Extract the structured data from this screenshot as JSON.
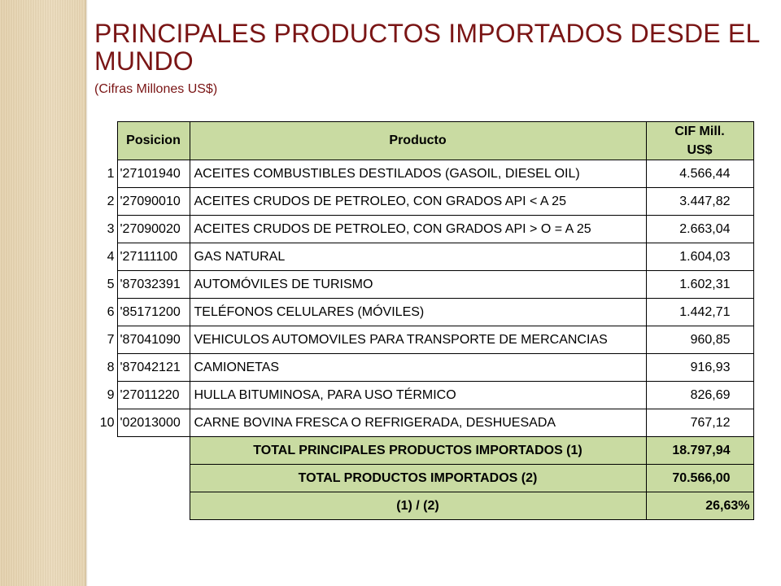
{
  "title": "PRINCIPALES PRODUCTOS IMPORTADOS DESDE EL MUNDO",
  "subtitle": "(Cifras Millones US$)",
  "table": {
    "headers": {
      "posicion": "Posicion",
      "producto": "Producto",
      "cif_line1": "CIF Mill.",
      "cif_line2": "US$"
    },
    "rows": [
      {
        "n": "1",
        "pos": "'27101940",
        "prod": "ACEITES COMBUSTIBLES DESTILADOS (GASOIL, DIESEL OIL)",
        "cif": "4.566,44"
      },
      {
        "n": "2",
        "pos": "'27090010",
        "prod": "ACEITES CRUDOS DE PETROLEO, CON GRADOS API < A 25",
        "cif": "3.447,82"
      },
      {
        "n": "3",
        "pos": "'27090020",
        "prod": "ACEITES CRUDOS DE PETROLEO, CON GRADOS API > O = A 25",
        "cif": "2.663,04"
      },
      {
        "n": "4",
        "pos": "'27111100",
        "prod": "GAS NATURAL",
        "cif": "1.604,03"
      },
      {
        "n": "5",
        "pos": "'87032391",
        "prod": "AUTOMÓVILES DE TURISMO",
        "cif": "1.602,31"
      },
      {
        "n": "6",
        "pos": "'85171200",
        "prod": "TELÉFONOS CELULARES (MÓVILES)",
        "cif": "1.442,71"
      },
      {
        "n": "7",
        "pos": "'87041090",
        "prod": "VEHICULOS AUTOMOVILES PARA TRANSPORTE DE MERCANCIAS",
        "cif": "960,85"
      },
      {
        "n": "8",
        "pos": "'87042121",
        "prod": "CAMIONETAS",
        "cif": "916,93"
      },
      {
        "n": "9",
        "pos": "'27011220",
        "prod": "HULLA BITUMINOSA, PARA USO TÉRMICO",
        "cif": "826,69"
      },
      {
        "n": "10",
        "pos": "'02013000",
        "prod": "CARNE BOVINA FRESCA O REFRIGERADA, DESHUESADA",
        "cif": "767,12"
      }
    ],
    "totals": [
      {
        "label": "TOTAL PRINCIPALES PRODUCTOS IMPORTADOS (1)",
        "value": "18.797,94"
      },
      {
        "label": "TOTAL PRODUCTOS IMPORTADOS (2)",
        "value": "70.566,00"
      },
      {
        "label": "(1) / (2)",
        "value": "26,63%"
      }
    ]
  },
  "colors": {
    "title": "#7a1515",
    "header_fill": "#c9dba2",
    "side_strip": "#e6d3ae"
  }
}
